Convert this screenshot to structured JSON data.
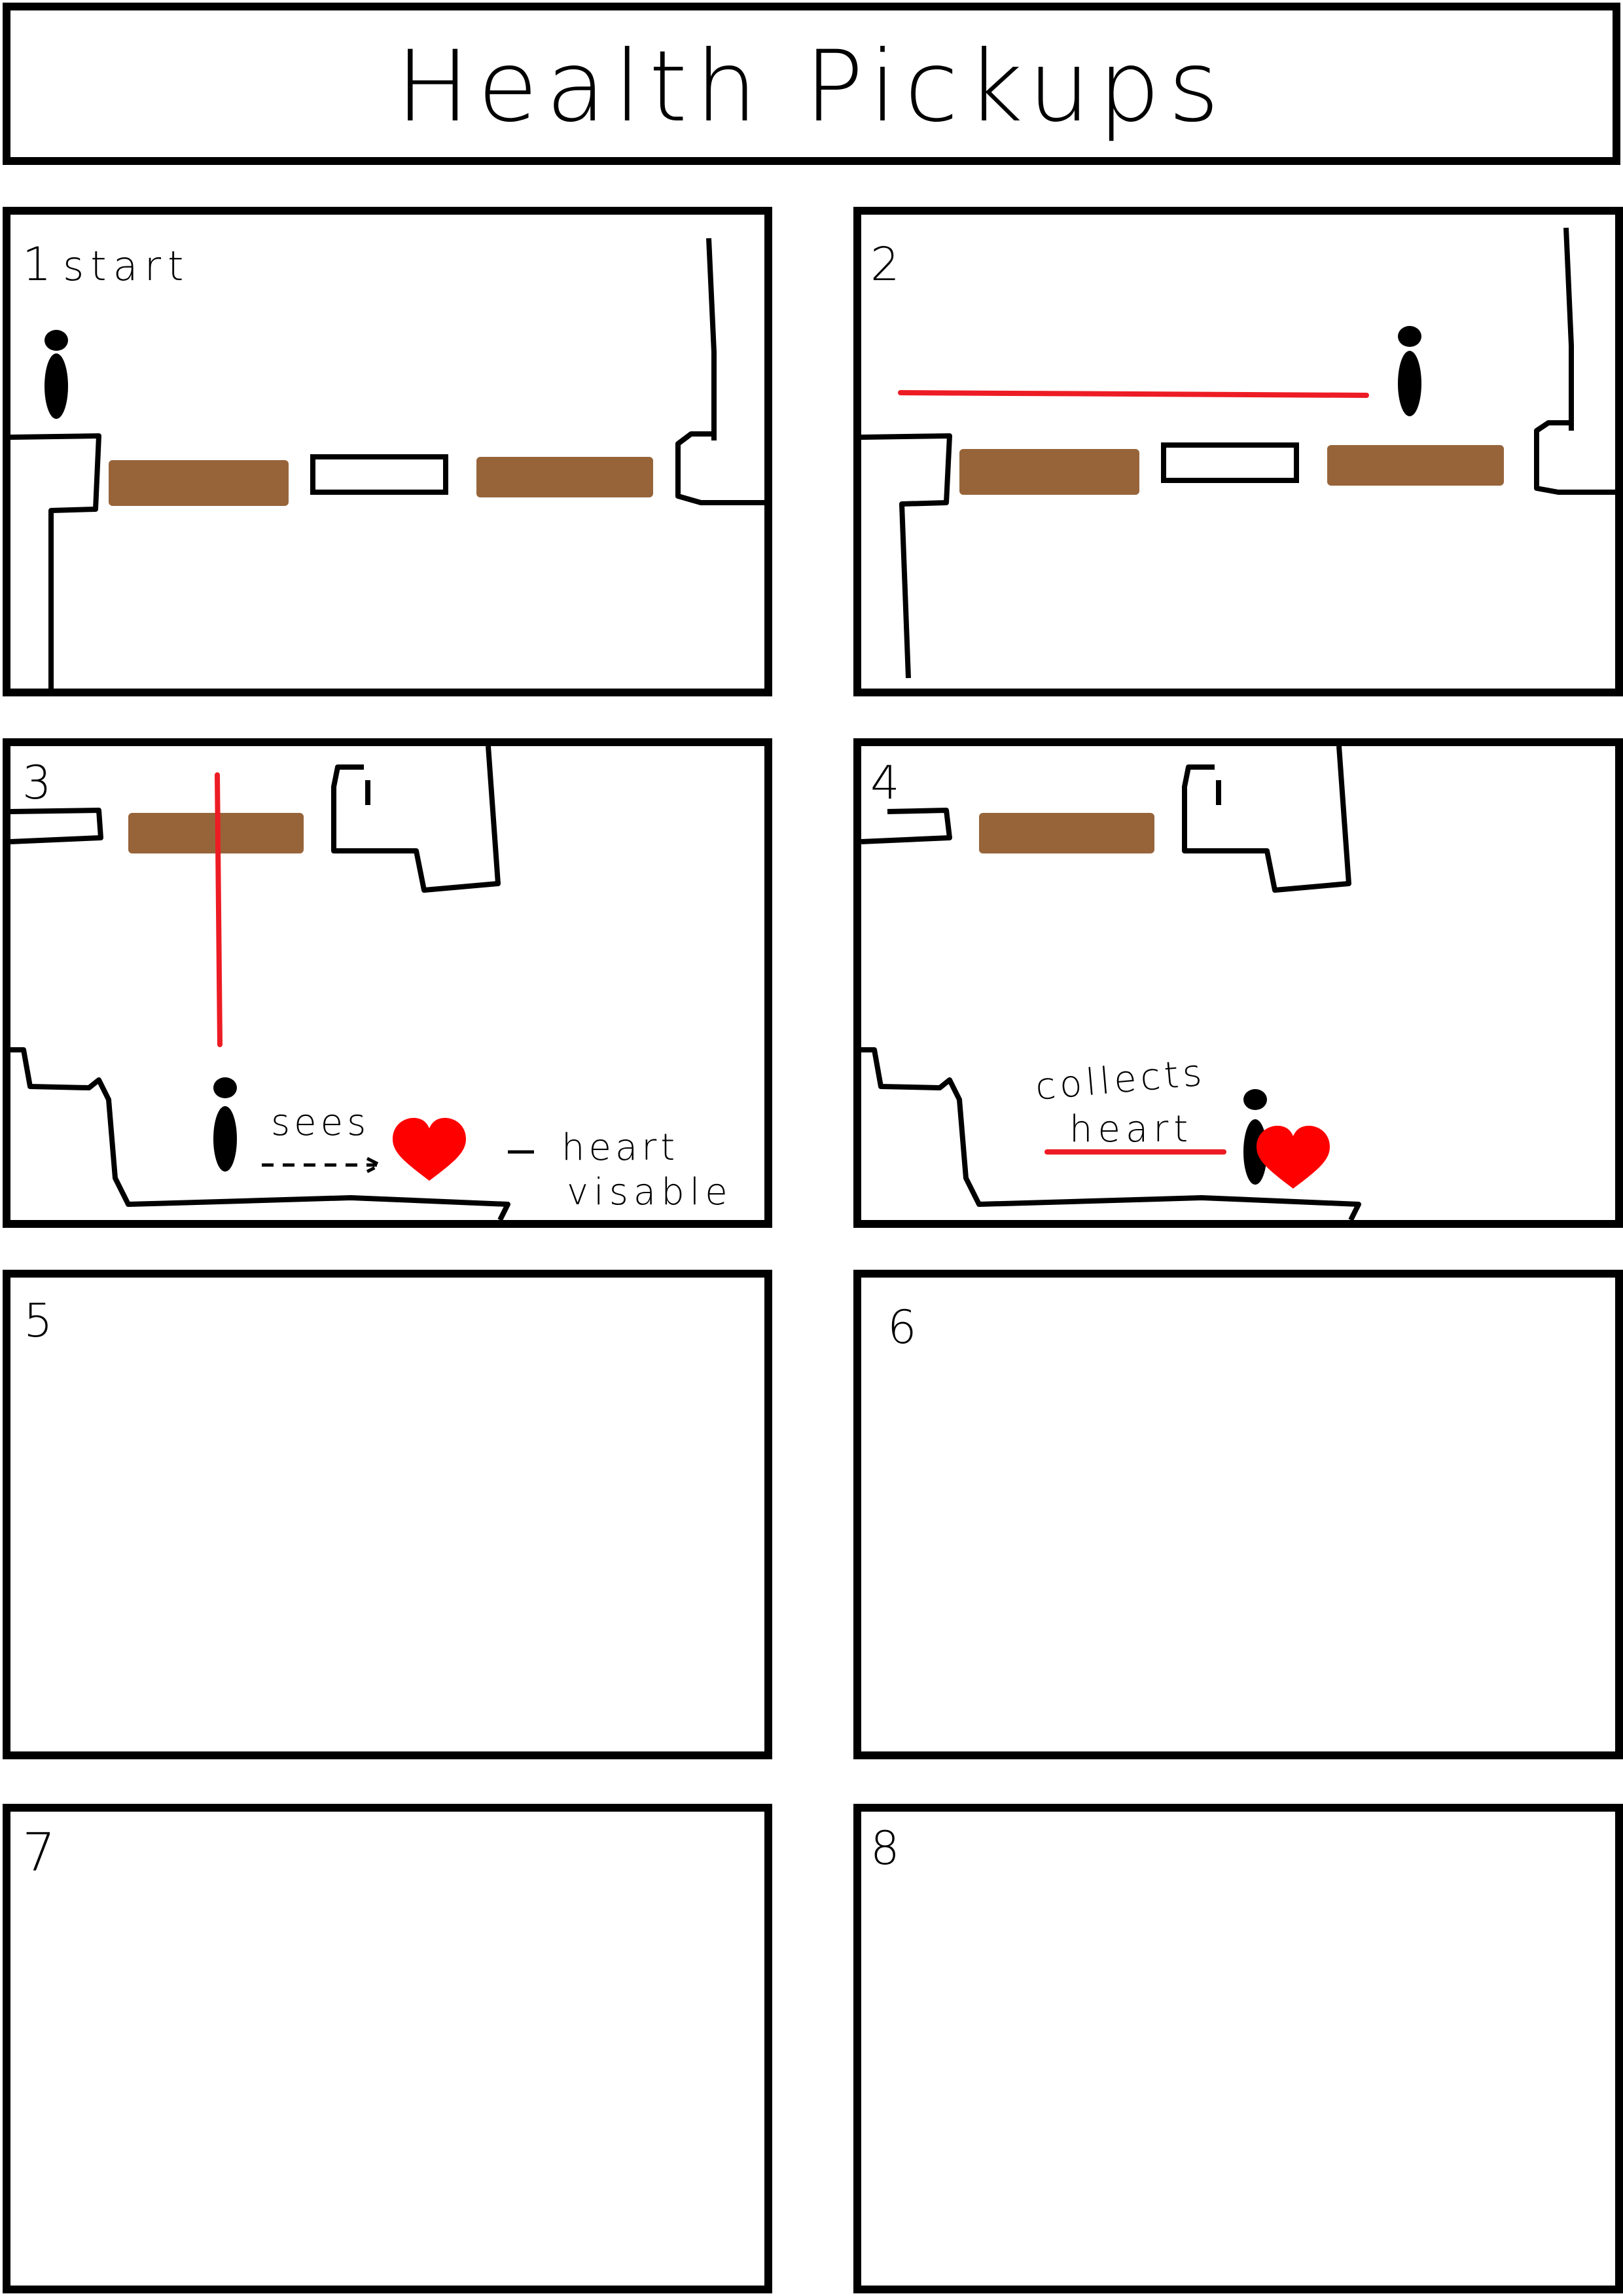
{
  "title": "Health Pickups",
  "colors": {
    "ink": "#000000",
    "ground": "#97643a",
    "trail": "#ed1c24",
    "heart": "#ff0000"
  },
  "panels": [
    {
      "number": "1",
      "caption": "start"
    },
    {
      "number": "2"
    },
    {
      "number": "3",
      "annotations": {
        "sees": "sees",
        "heart_note_line1": "heart",
        "heart_note_line2": "visable"
      }
    },
    {
      "number": "4",
      "annotations": {
        "collects_line1": "collects",
        "collects_line2": "heart"
      }
    },
    {
      "number": "5"
    },
    {
      "number": "6"
    },
    {
      "number": "7"
    },
    {
      "number": "8"
    }
  ],
  "icons": {
    "character": "character-icon",
    "heart": "heart-icon"
  }
}
